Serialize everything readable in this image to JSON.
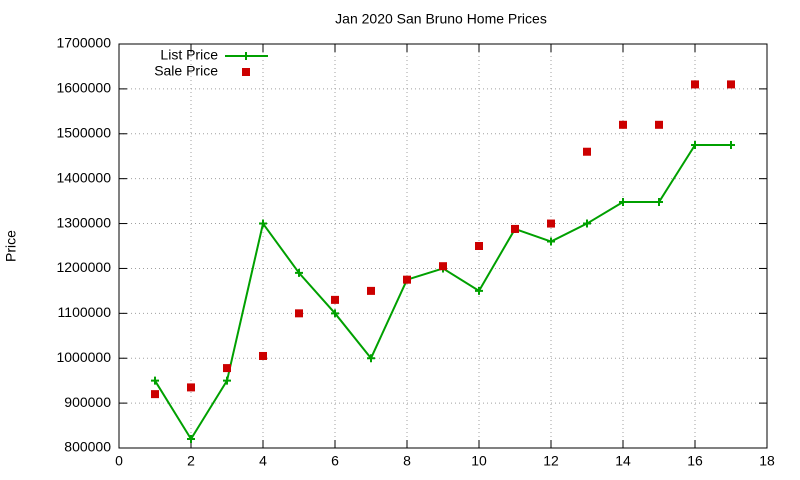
{
  "chart_data": {
    "type": "line",
    "title": "Jan 2020 San Bruno Home Prices",
    "y_label": "Price",
    "x": [
      1,
      2,
      3,
      4,
      5,
      6,
      7,
      8,
      9,
      10,
      11,
      12,
      13,
      14,
      15,
      16,
      17
    ],
    "series": [
      {
        "name": "List Price",
        "color": "#00a000",
        "line": true,
        "marker": "plus",
        "values": [
          950000,
          820000,
          950000,
          1300000,
          1190000,
          1100000,
          1000000,
          1175000,
          1200000,
          1150000,
          1288000,
          1260000,
          1300000,
          1348000,
          1348000,
          1475000,
          1475000
        ]
      },
      {
        "name": "Sale Price",
        "color": "#cc0000",
        "line": false,
        "marker": "square",
        "values": [
          920000,
          935000,
          978000,
          1005000,
          1100000,
          1130000,
          1150000,
          1175000,
          1205000,
          1250000,
          1288000,
          1300000,
          1460000,
          1520000,
          1520000,
          1610000,
          1610000
        ]
      }
    ],
    "xlim": [
      0,
      18
    ],
    "xticks": [
      0,
      2,
      4,
      6,
      8,
      10,
      12,
      14,
      16,
      18
    ],
    "ylim": [
      800000,
      1700000
    ],
    "yticks": [
      800000,
      900000,
      1000000,
      1100000,
      1200000,
      1300000,
      1400000,
      1500000,
      1600000,
      1700000
    ],
    "grid": true,
    "legend": "top-left"
  }
}
